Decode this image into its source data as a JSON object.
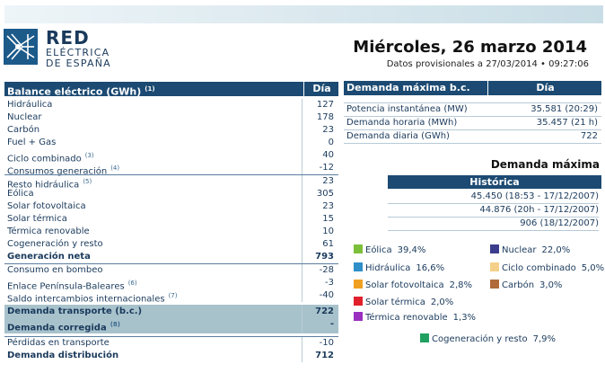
{
  "brand": {
    "line1": "RED",
    "line2": "ELÉCTRICA",
    "line3": "DE ESPAÑA"
  },
  "date": {
    "title": "Miércoles, 26 marzo 2014",
    "subtitle": "Datos provisionales a 27/03/2014 • 09:27:06"
  },
  "balance": {
    "header": "Balance eléctrico (GWh)",
    "header_note": "(1)",
    "col": "Día",
    "rows": [
      {
        "label": "Hidráulica",
        "value": "127"
      },
      {
        "label": "Nuclear",
        "value": "178"
      },
      {
        "label": "Carbón",
        "value": "23"
      },
      {
        "label": "Fuel + Gas",
        "value": "0"
      },
      {
        "label": "Ciclo combinado",
        "note": "(3)",
        "value": "40"
      },
      {
        "label": "Consumos generación",
        "note": "(4)",
        "value": "-12"
      },
      {
        "label": "Resto hidráulica",
        "note": "(5)",
        "value": "23"
      },
      {
        "label": "Eólica",
        "value": "305"
      },
      {
        "label": "Solar fotovoltaica",
        "value": "23"
      },
      {
        "label": "Solar térmica",
        "value": "15"
      },
      {
        "label": "Térmica renovable",
        "value": "10"
      },
      {
        "label": "Cogeneración y resto",
        "value": "61"
      },
      {
        "label": "Generación neta",
        "value": "793"
      },
      {
        "label": "Consumo en bombeo",
        "value": "-28"
      },
      {
        "label": "Enlace Península-Baleares",
        "note": "(6)",
        "value": "-3"
      },
      {
        "label": "Saldo intercambios internacionales",
        "note": "(7)",
        "value": "-40"
      },
      {
        "label": "Demanda transporte (b.c.)",
        "value": "722"
      },
      {
        "label": "Demanda corregida",
        "note": "(8)",
        "value": "-"
      },
      {
        "label": "Pérdidas en transporte",
        "value": "-10"
      },
      {
        "label": "Demanda distribución",
        "value": "712"
      }
    ]
  },
  "demanda_bc": {
    "header": "Demanda máxima b.c.",
    "col": "Día",
    "rows": [
      {
        "label": "Potencia instantánea (MW)",
        "value": "35.581 (20:29)"
      },
      {
        "label": "Demanda horaria (MWh)",
        "value": "35.457 (21 h)"
      },
      {
        "label": "Demanda diaria (GWh)",
        "value": "722"
      }
    ]
  },
  "demanda_maxima": {
    "title": "Demanda máxima",
    "hist_header": "Histórica",
    "rows": [
      "45.450 (18:53 - 17/12/2007)",
      "44.876 (20h - 17/12/2007)",
      "906 (18/12/2007)"
    ]
  },
  "legend": [
    {
      "label": "Eólica",
      "pct": "39,4%",
      "color": "#7cbf3a"
    },
    {
      "label": "Nuclear",
      "pct": "22,0%",
      "color": "#3c3c8c"
    },
    {
      "label": "Hidráulica",
      "pct": "16,6%",
      "color": "#2e8fc9"
    },
    {
      "label": "Ciclo combinado",
      "pct": "5,0%",
      "color": "#f5d08a"
    },
    {
      "label": "Solar fotovoltaica",
      "pct": "2,8%",
      "color": "#f0a020"
    },
    {
      "label": "Carbón",
      "pct": "3,0%",
      "color": "#b06a3a"
    },
    {
      "label": "Solar térmica",
      "pct": "2,0%",
      "color": "#e0202a"
    },
    {
      "label": "Térmica renovable",
      "pct": "1,3%",
      "color": "#9a30c0"
    },
    {
      "label": "Cogeneración y resto",
      "pct": "7,9%",
      "color": "#20a060"
    }
  ]
}
